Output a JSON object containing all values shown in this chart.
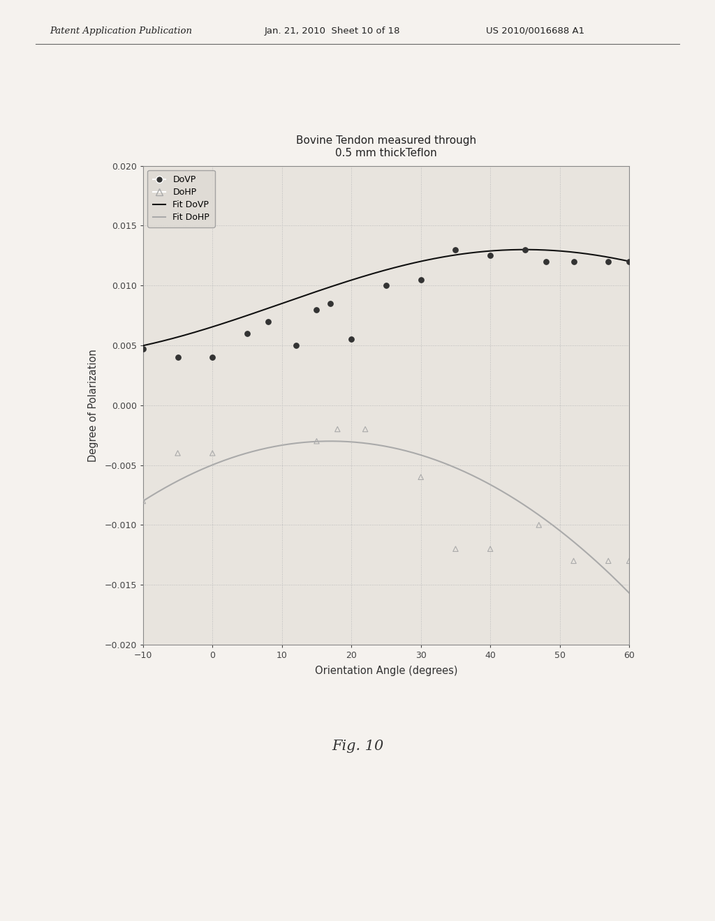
{
  "title_line1": "Bovine Tendon measured through",
  "title_line2": "0.5 mm thickTeflon",
  "xlabel": "Orientation Angle (degrees)",
  "ylabel": "Degree of Polarization",
  "fig_label": "Fig. 10",
  "xlim": [
    -10,
    60
  ],
  "ylim": [
    -0.02,
    0.02
  ],
  "yticks": [
    -0.02,
    -0.015,
    -0.01,
    -0.005,
    0,
    0.005,
    0.01,
    0.015,
    0.02
  ],
  "xticks": [
    -10,
    0,
    10,
    20,
    30,
    40,
    50,
    60
  ],
  "background_color": "#f0ede8",
  "plot_bg_color": "#e8e4de",
  "grid_color": "#bbbbbb",
  "dovp_scatter_x": [
    -10,
    -5,
    0,
    5,
    8,
    12,
    15,
    17,
    20,
    25,
    30,
    35,
    40,
    45,
    48,
    52,
    57,
    60
  ],
  "dovp_scatter_y": [
    0.0047,
    0.004,
    0.004,
    0.006,
    0.007,
    0.005,
    0.008,
    0.0085,
    0.0055,
    0.01,
    0.0105,
    0.013,
    0.0125,
    0.013,
    0.012,
    0.012,
    0.012,
    0.012
  ],
  "dohp_scatter_x": [
    -10,
    -5,
    0,
    15,
    18,
    22,
    30,
    35,
    40,
    47,
    52,
    57,
    60
  ],
  "dohp_scatter_y": [
    -0.008,
    -0.004,
    -0.004,
    -0.003,
    -0.002,
    -0.002,
    -0.006,
    -0.012,
    -0.012,
    -0.01,
    -0.013,
    -0.013,
    -0.013
  ],
  "dovp_color": "#333333",
  "dohp_color": "#aaaaaa",
  "fit_dovp_color": "#111111",
  "fit_dohp_color": "#aaaaaa",
  "patent_header_left": "Patent Application Publication",
  "patent_header_mid": "Jan. 21, 2010  Sheet 10 of 18",
  "patent_header_right": "US 2010/0016688 A1"
}
